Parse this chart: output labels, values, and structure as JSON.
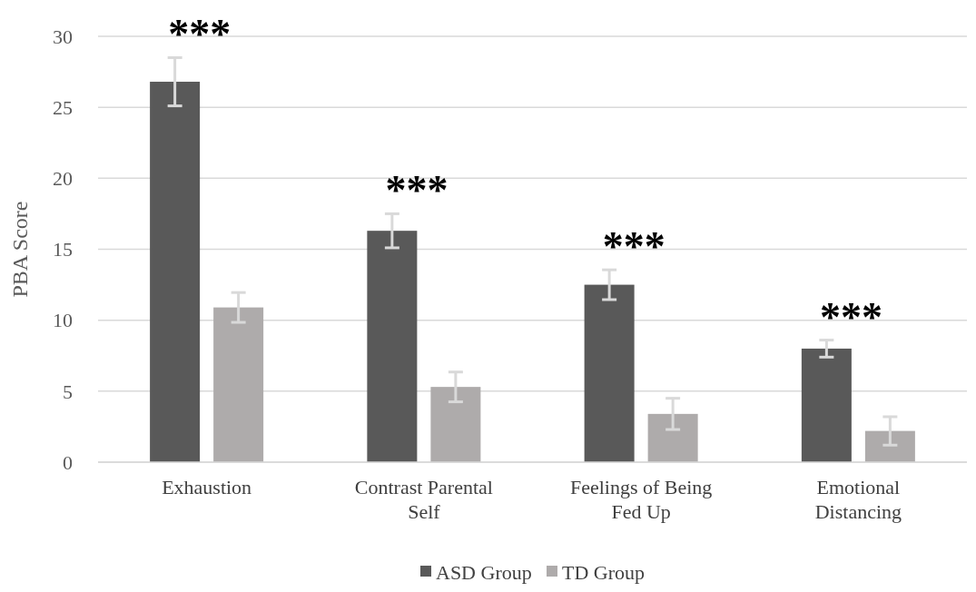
{
  "chart_data": {
    "type": "bar",
    "ylabel": "PBA Score",
    "categories": [
      "Exhaustion",
      "Contrast Parental Self",
      "Feelings of Being Fed Up",
      "Emotional Distancing"
    ],
    "series": [
      {
        "name": "ASD Group",
        "color": "#595959",
        "values": [
          26.8,
          16.3,
          12.5,
          8.0
        ],
        "errors": [
          1.7,
          1.2,
          1.05,
          0.6
        ]
      },
      {
        "name": "TD Group",
        "color": "#aeabab",
        "values": [
          10.9,
          5.3,
          3.4,
          2.2
        ],
        "errors": [
          1.05,
          1.05,
          1.1,
          1.0
        ]
      }
    ],
    "ylim": [
      0,
      30
    ],
    "yticks": [
      0,
      5,
      10,
      15,
      20,
      25,
      30
    ],
    "grid": "y",
    "legend": "bottom",
    "annotations": [
      "***",
      "***",
      "***",
      "***"
    ]
  }
}
